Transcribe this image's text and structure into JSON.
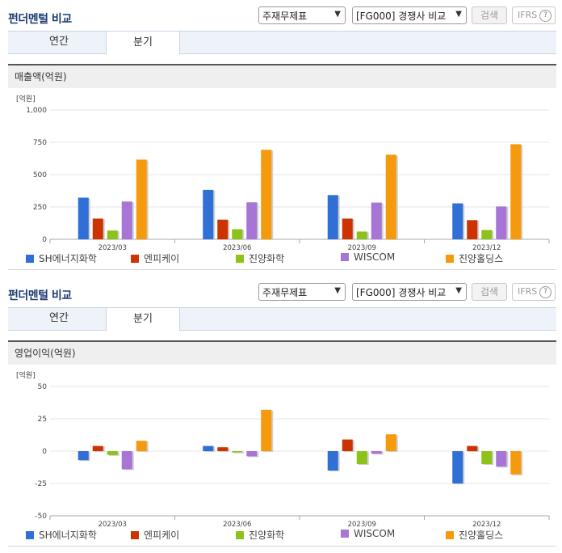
{
  "panels": [
    {
      "title": "펀더멘털 비교",
      "select1": "주재무제표",
      "select2": "[FG000] 경쟁사 비교",
      "search_label": "검색",
      "ifrs_label": "IFRS",
      "ifrs_help": "?",
      "tabs": [
        "연간",
        "분기"
      ],
      "active_tab": "분기",
      "section_title": "매출액(억원)",
      "unit": "[억원]"
    },
    {
      "title": "펀더멘털 비교",
      "select1": "주재무제표",
      "select2": "[FG000] 경쟁사 비교",
      "search_label": "검색",
      "ifrs_label": "IFRS",
      "ifrs_help": "?",
      "tabs": [
        "연간",
        "분기"
      ],
      "active_tab": "분기",
      "section_title": "영업이익(억원)",
      "unit": "[억원]"
    }
  ],
  "colors": {
    "SH에너지화학": "#2f6fd6",
    "엔피케이": "#cc3300",
    "진양화학": "#8cc21a",
    "WISCOM": "#a675d6",
    "진양홀딩스": "#f59a0c"
  },
  "chart_data": [
    {
      "type": "bar",
      "title": "매출액(억원)",
      "ylabel": "[억원]",
      "categories": [
        "2023/03",
        "2023/06",
        "2023/09",
        "2023/12"
      ],
      "ylim": [
        0,
        1000
      ],
      "yticks": [
        0,
        250,
        500,
        750,
        1000
      ],
      "ytick_labels": [
        "0",
        "250",
        "500",
        "750",
        "1,000"
      ],
      "grid": true,
      "legend": "bottom",
      "series": [
        {
          "name": "SH에너지화학",
          "values": [
            322,
            382,
            342,
            278
          ]
        },
        {
          "name": "엔피케이",
          "values": [
            160,
            152,
            160,
            148
          ]
        },
        {
          "name": "진양화학",
          "values": [
            68,
            78,
            60,
            72
          ]
        },
        {
          "name": "WISCOM",
          "values": [
            292,
            286,
            284,
            254
          ]
        },
        {
          "name": "진양홀딩스",
          "values": [
            616,
            692,
            654,
            735
          ]
        }
      ]
    },
    {
      "type": "bar",
      "title": "영업이익(억원)",
      "ylabel": "[억원]",
      "categories": [
        "2023/03",
        "2023/06",
        "2023/09",
        "2023/12"
      ],
      "ylim": [
        -50,
        50
      ],
      "yticks": [
        -50,
        -25,
        0,
        25,
        50
      ],
      "ytick_labels": [
        "-50",
        "-25",
        "0",
        "25",
        "50"
      ],
      "grid": true,
      "legend": "bottom",
      "series": [
        {
          "name": "SH에너지화학",
          "values": [
            -7,
            4,
            -15,
            -25
          ]
        },
        {
          "name": "엔피케이",
          "values": [
            4,
            3,
            9,
            4
          ]
        },
        {
          "name": "진양화학",
          "values": [
            -3,
            -1,
            -10,
            -10
          ]
        },
        {
          "name": "WISCOM",
          "values": [
            -14,
            -4,
            -2,
            -12
          ]
        },
        {
          "name": "진양홀딩스",
          "values": [
            8,
            32,
            13,
            -18
          ]
        }
      ]
    }
  ]
}
